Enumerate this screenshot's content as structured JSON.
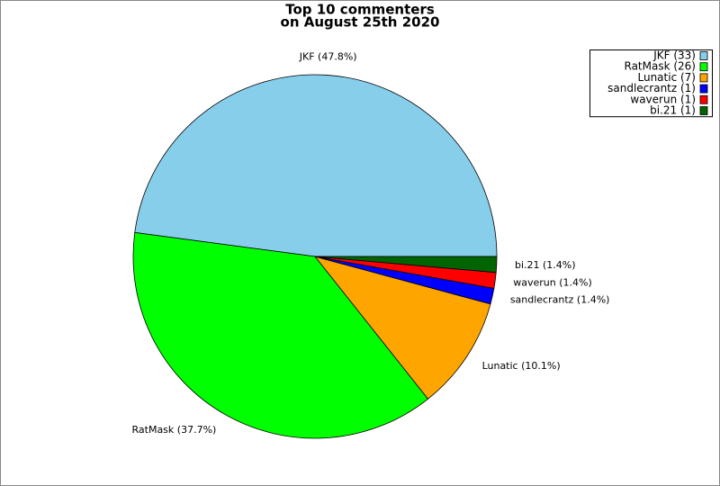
{
  "chart_data": {
    "type": "pie",
    "title": [
      "Top 10 commenters",
      "on August 25th 2020"
    ],
    "categories": [
      "JKF (33)",
      "RatMask (26)",
      "Lunatic (7)",
      "sandlecrantz (1)",
      "waverun (1)",
      "bi.21 (1)"
    ],
    "values": [
      47.8,
      37.7,
      10.1,
      1.4,
      1.4,
      1.4
    ],
    "value_labels": [
      "JKF (47.8%)",
      "RatMask (37.7%)",
      "Lunatic (10.1%)",
      "sandlecrantz (1.4%)",
      "waverun (1.4%)",
      "bi.21 (1.4%)"
    ],
    "colors": [
      "#87ceeb",
      "#00ff00",
      "#ffa500",
      "#0000ff",
      "#ff0000",
      "#006400"
    ],
    "legend": "upper right"
  }
}
